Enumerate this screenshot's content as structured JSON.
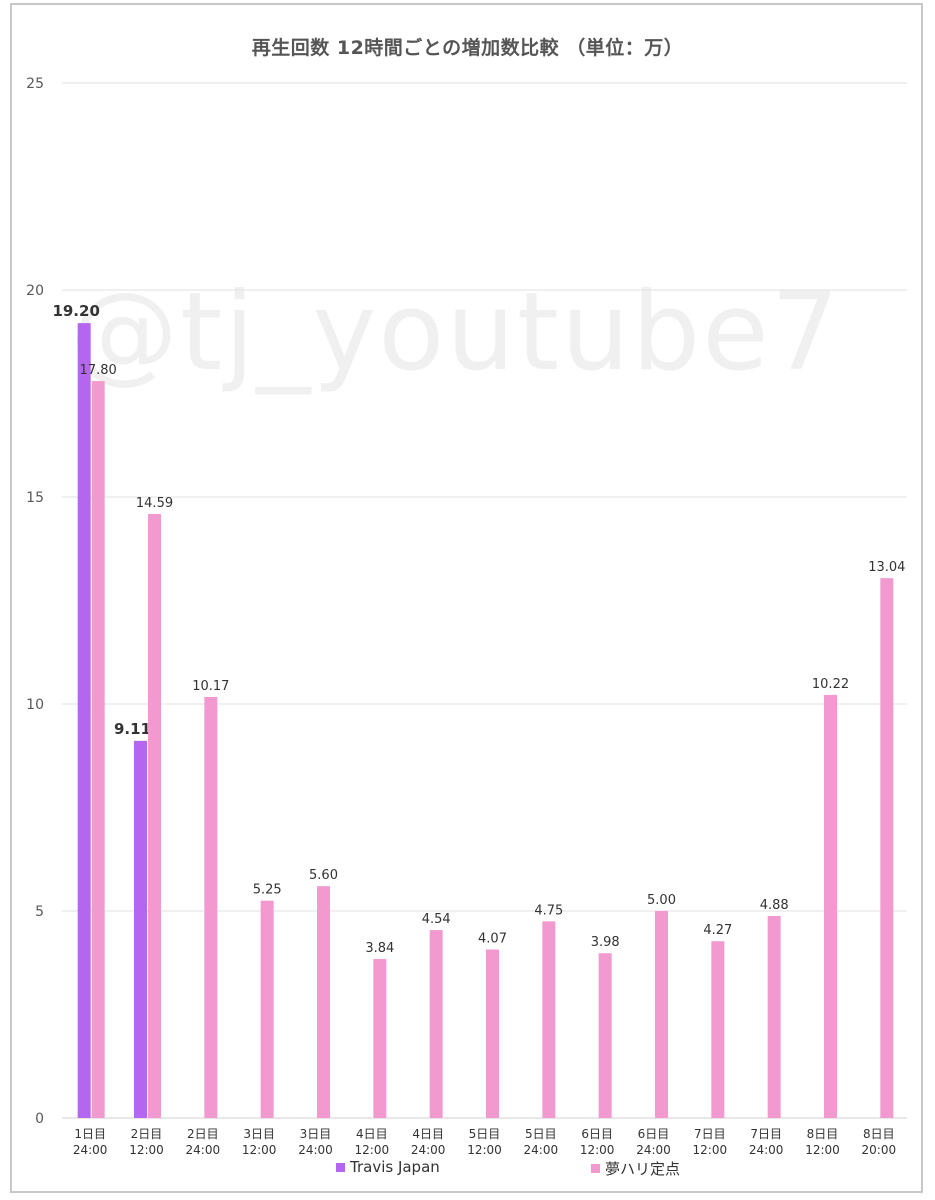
{
  "chart_data": {
    "type": "bar",
    "title": "再生回数 12時間ごとの増加数比較 （単位：万）",
    "categories": [
      [
        "1日目",
        "24:00"
      ],
      [
        "2日目",
        "12:00"
      ],
      [
        "2日目",
        "24:00"
      ],
      [
        "3日目",
        "12:00"
      ],
      [
        "3日目",
        "24:00"
      ],
      [
        "4日目",
        "12:00"
      ],
      [
        "4日目",
        "24:00"
      ],
      [
        "5日目",
        "12:00"
      ],
      [
        "5日目",
        "24:00"
      ],
      [
        "6日目",
        "12:00"
      ],
      [
        "6日目",
        "24:00"
      ],
      [
        "7日目",
        "12:00"
      ],
      [
        "7日目",
        "24:00"
      ],
      [
        "8日目",
        "12:00"
      ],
      [
        "8日目",
        "20:00"
      ]
    ],
    "series": [
      {
        "name": "Travis Japan",
        "color": "#b566f0",
        "label_bold": true,
        "values": [
          19.2,
          9.11,
          null,
          null,
          null,
          null,
          null,
          null,
          null,
          null,
          null,
          null,
          null,
          null,
          null
        ],
        "labels": [
          "19.20",
          "9.11",
          null,
          null,
          null,
          null,
          null,
          null,
          null,
          null,
          null,
          null,
          null,
          null,
          null
        ]
      },
      {
        "name": "夢ハリ定点",
        "color": "#f29ad0",
        "label_bold": false,
        "values": [
          17.8,
          14.59,
          10.17,
          5.25,
          5.6,
          3.84,
          4.54,
          4.07,
          4.75,
          3.98,
          5.0,
          4.27,
          4.88,
          10.22,
          13.04
        ],
        "labels": [
          "17.80",
          "14.59",
          "10.17",
          "5.25",
          "5.60",
          "3.84",
          "4.54",
          "4.07",
          "4.75",
          "3.98",
          "5.00",
          "4.27",
          "4.88",
          "10.22",
          "13.04"
        ]
      }
    ],
    "y_ticks": [
      "0",
      "5",
      "10",
      "15",
      "20",
      "25"
    ],
    "ylim": [
      0,
      25
    ],
    "grid": true,
    "legend_position": "bottom"
  },
  "watermark": "@tj_youtube7"
}
